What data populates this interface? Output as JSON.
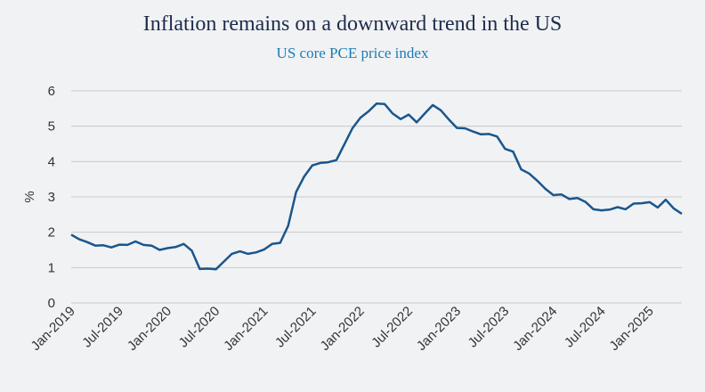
{
  "chart_data": {
    "type": "line",
    "title": "Inflation remains on a downward trend in the US",
    "subtitle": "US core PCE price index",
    "xlabel": "",
    "ylabel": "%",
    "ylim": [
      0,
      6
    ],
    "yticks": [
      "0",
      "1",
      "2",
      "3",
      "4",
      "5",
      "6"
    ],
    "grid": true,
    "line_color": "#1a568c",
    "x_tick_labels": [
      "Jan-2019",
      "Jul-2019",
      "Jan-2020",
      "Jul-2020",
      "Jan-2021",
      "Jul-2021",
      "Jan-2022",
      "Jul-2022",
      "Jan-2023",
      "Jul-2023",
      "Jan-2024",
      "Jul-2024",
      "Jan-2025"
    ],
    "x_tick_month_index": [
      0,
      6,
      12,
      18,
      24,
      30,
      36,
      42,
      48,
      54,
      60,
      66,
      72
    ],
    "series": [
      {
        "name": "US core PCE price index",
        "start": "Jan-2019",
        "values": [
          1.93,
          1.8,
          1.72,
          1.62,
          1.63,
          1.57,
          1.65,
          1.64,
          1.74,
          1.64,
          1.62,
          1.5,
          1.55,
          1.58,
          1.67,
          1.48,
          0.96,
          0.97,
          0.95,
          1.17,
          1.39,
          1.46,
          1.39,
          1.43,
          1.51,
          1.67,
          1.7,
          2.18,
          3.14,
          3.58,
          3.89,
          3.96,
          3.98,
          4.04,
          4.49,
          4.94,
          5.24,
          5.42,
          5.64,
          5.63,
          5.36,
          5.2,
          5.33,
          5.11,
          5.36,
          5.6,
          5.45,
          5.19,
          4.95,
          4.94,
          4.85,
          4.77,
          4.78,
          4.71,
          4.36,
          4.28,
          3.78,
          3.66,
          3.46,
          3.23,
          3.05,
          3.07,
          2.94,
          2.97,
          2.86,
          2.65,
          2.62,
          2.64,
          2.71,
          2.65,
          2.81,
          2.82,
          2.85,
          2.7,
          2.92,
          2.67,
          2.52
        ]
      }
    ]
  }
}
